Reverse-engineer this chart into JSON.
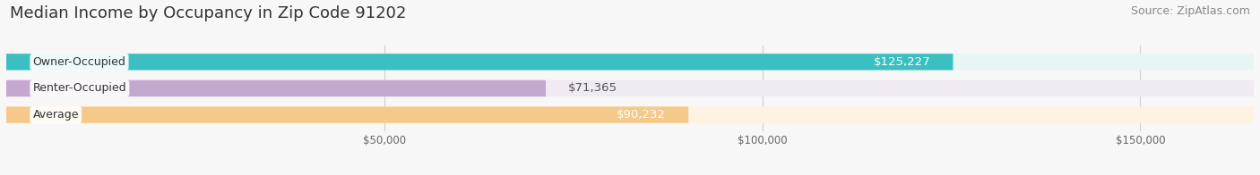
{
  "title": "Median Income by Occupancy in Zip Code 91202",
  "source": "Source: ZipAtlas.com",
  "categories": [
    "Owner-Occupied",
    "Renter-Occupied",
    "Average"
  ],
  "values": [
    125227,
    71365,
    90232
  ],
  "labels": [
    "$125,227",
    "$71,365",
    "$90,232"
  ],
  "bar_colors": [
    "#3bbfc0",
    "#c4a8d0",
    "#f5c98a"
  ],
  "bar_bg_colors": [
    "#e8f5f5",
    "#f0eaf5",
    "#fdf3e3"
  ],
  "xlim": [
    0,
    165000
  ],
  "xticks": [
    50000,
    100000,
    150000
  ],
  "xticklabels": [
    "$50,000",
    "$100,000",
    "$150,000"
  ],
  "grid_color": "#d0d0d0",
  "background_color": "#f7f7f7",
  "title_fontsize": 13,
  "bar_height": 0.62,
  "bar_label_fontsize": 9.5,
  "category_label_fontsize": 9,
  "source_fontsize": 9
}
